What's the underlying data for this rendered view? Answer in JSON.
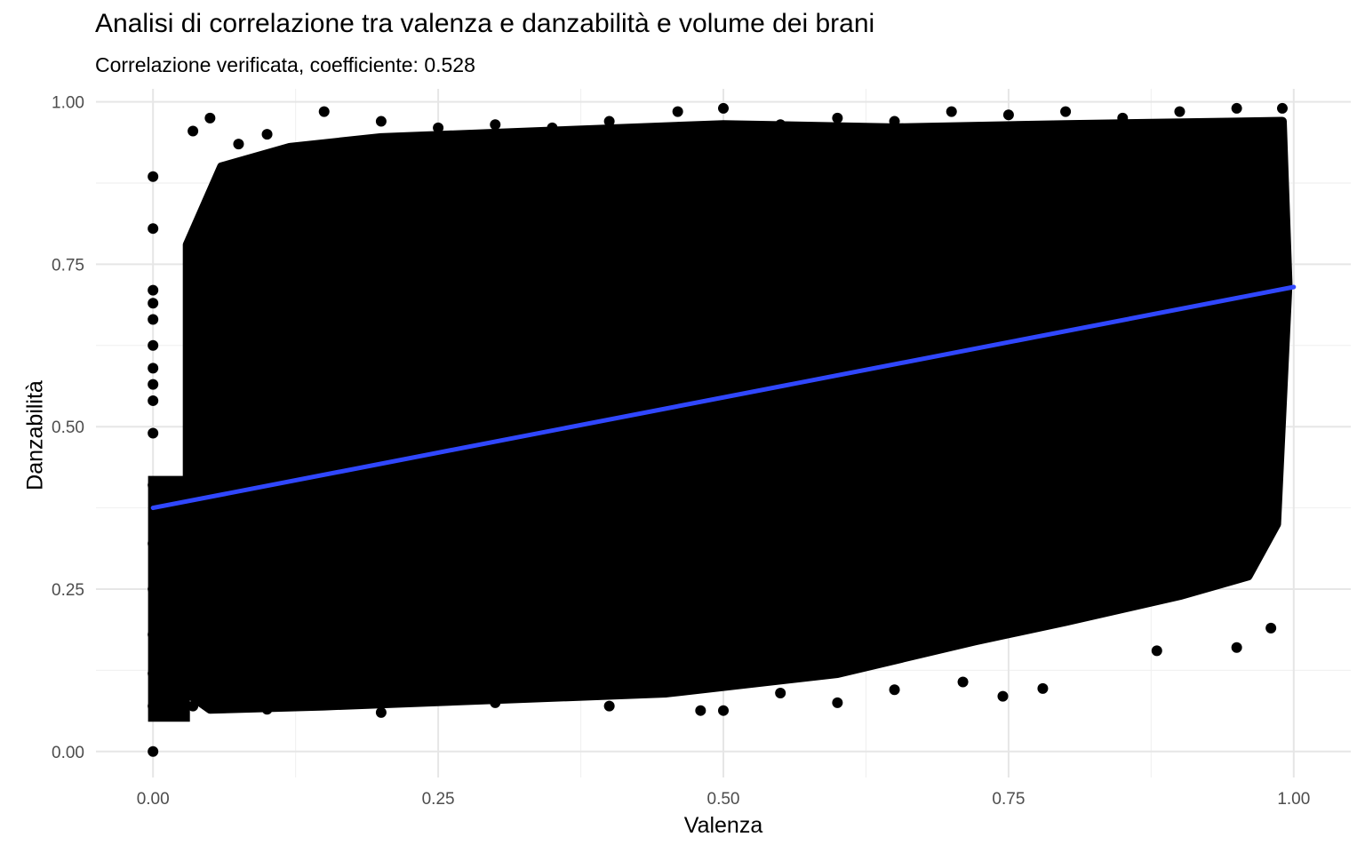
{
  "chart_data": {
    "type": "scatter",
    "title": "Analisi di correlazione tra valenza e danzabilità e volume dei brani",
    "subtitle": "Correlazione verificata, coefficiente:  0.528",
    "xlabel": "Valenza",
    "ylabel": "Danzabilità",
    "xlim": [
      -0.05,
      1.05
    ],
    "ylim": [
      -0.04,
      1.02
    ],
    "xticks": [
      0.0,
      0.25,
      0.5,
      0.75,
      1.0
    ],
    "xtick_labels": [
      "0.00",
      "0.25",
      "0.50",
      "0.75",
      "1.00"
    ],
    "yticks": [
      0.0,
      0.25,
      0.5,
      0.75,
      1.0
    ],
    "ytick_labels": [
      "0.00",
      "0.25",
      "0.50",
      "0.75",
      "1.00"
    ],
    "grid": true,
    "point_color": "#000000",
    "series": [
      {
        "type": "points",
        "description_values": "dense cloud",
        "points": [
          [
            0.0,
            0.0
          ],
          [
            0.0,
            0.885
          ],
          [
            0.0,
            0.805
          ],
          [
            0.0,
            0.71
          ],
          [
            0.0,
            0.69
          ],
          [
            0.0,
            0.665
          ],
          [
            0.0,
            0.625
          ],
          [
            0.0,
            0.59
          ],
          [
            0.0,
            0.565
          ],
          [
            0.0,
            0.54
          ],
          [
            0.0,
            0.49
          ],
          [
            0.0,
            0.41
          ],
          [
            0.0,
            0.32
          ],
          [
            0.0,
            0.25
          ],
          [
            0.0,
            0.18
          ],
          [
            0.0,
            0.12
          ],
          [
            0.0,
            0.07
          ],
          [
            0.035,
            0.955
          ],
          [
            0.05,
            0.975
          ],
          [
            0.075,
            0.935
          ],
          [
            0.1,
            0.95
          ],
          [
            0.15,
            0.985
          ],
          [
            0.2,
            0.97
          ],
          [
            0.25,
            0.96
          ],
          [
            0.3,
            0.965
          ],
          [
            0.35,
            0.96
          ],
          [
            0.4,
            0.97
          ],
          [
            0.46,
            0.985
          ],
          [
            0.5,
            0.99
          ],
          [
            0.55,
            0.965
          ],
          [
            0.6,
            0.975
          ],
          [
            0.65,
            0.97
          ],
          [
            0.7,
            0.985
          ],
          [
            0.75,
            0.98
          ],
          [
            0.8,
            0.985
          ],
          [
            0.85,
            0.975
          ],
          [
            0.9,
            0.985
          ],
          [
            0.95,
            0.99
          ],
          [
            0.99,
            0.99
          ],
          [
            0.035,
            0.07
          ],
          [
            0.1,
            0.065
          ],
          [
            0.2,
            0.06
          ],
          [
            0.3,
            0.075
          ],
          [
            0.4,
            0.07
          ],
          [
            0.48,
            0.063
          ],
          [
            0.5,
            0.063
          ],
          [
            0.55,
            0.09
          ],
          [
            0.6,
            0.075
          ],
          [
            0.65,
            0.095
          ],
          [
            0.71,
            0.107
          ],
          [
            0.745,
            0.085
          ],
          [
            0.78,
            0.097
          ],
          [
            0.88,
            0.155
          ],
          [
            0.95,
            0.16
          ],
          [
            0.98,
            0.19
          ]
        ]
      },
      {
        "name": "",
        "type": "regression",
        "color": "#3047ff",
        "x": [
          0.0,
          1.0
        ],
        "y": [
          0.375,
          0.715
        ]
      }
    ]
  }
}
